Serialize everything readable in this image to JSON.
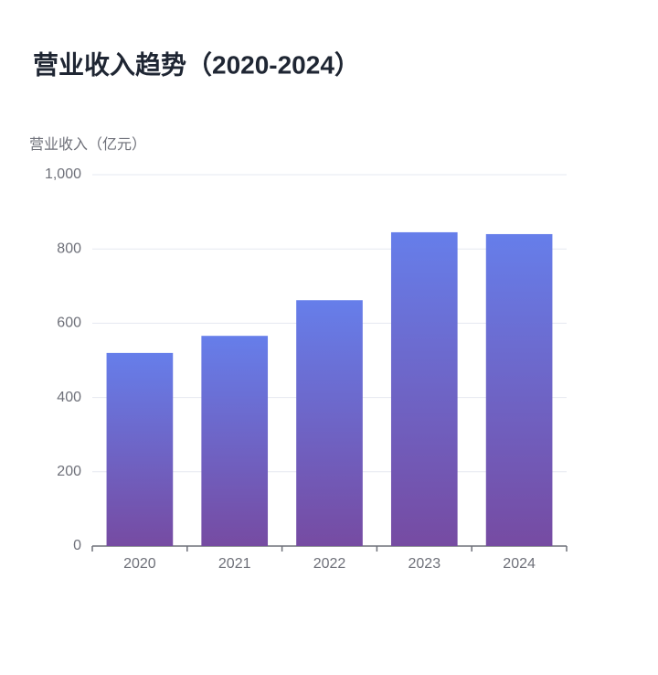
{
  "chart_data": {
    "type": "bar",
    "title": "营业收入趋势（2020-2024）",
    "y_label": "营业收入（亿元）",
    "categories": [
      "2020",
      "2021",
      "2022",
      "2023",
      "2024"
    ],
    "values": [
      520,
      566,
      662,
      845,
      840
    ],
    "gradient": [
      "#667eea",
      "#764ba2"
    ],
    "ylim": [
      0,
      1000
    ],
    "yticks": [
      0,
      200,
      400,
      600,
      800,
      {
        "value": 1000,
        "label": "1,000"
      }
    ],
    "grid": true
  }
}
